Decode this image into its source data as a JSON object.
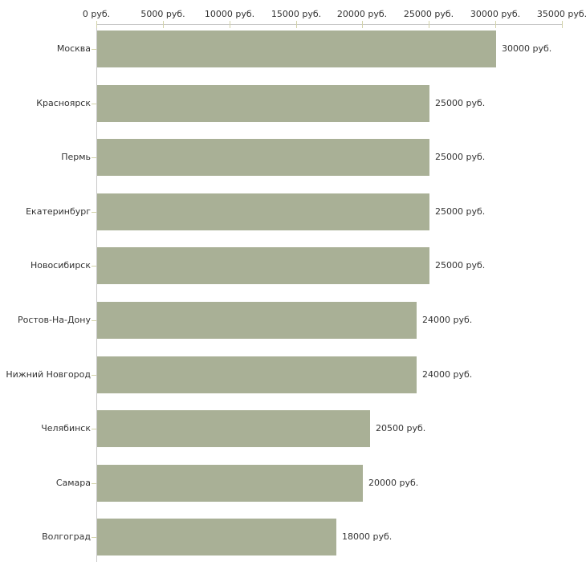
{
  "chart_data": {
    "type": "bar",
    "orientation": "horizontal",
    "title": "",
    "xlabel": "",
    "ylabel": "",
    "categories": [
      "Москва",
      "Красноярск",
      "Пермь",
      "Екатеринбург",
      "Новосибирск",
      "Ростов-На-Дону",
      "Нижний Новгород",
      "Челябинск",
      "Самара",
      "Волгоград"
    ],
    "values": [
      30000,
      25000,
      25000,
      25000,
      25000,
      24000,
      24000,
      20500,
      20000,
      18000
    ],
    "value_labels": [
      "30000 руб.",
      "25000 руб.",
      "25000 руб.",
      "25000 руб.",
      "25000 руб.",
      "24000 руб.",
      "24000 руб.",
      "20500 руб.",
      "20000 руб.",
      "18000 руб."
    ],
    "x_axis": {
      "position": "top",
      "range": [
        0,
        35000
      ],
      "ticks": [
        0,
        5000,
        10000,
        15000,
        20000,
        25000,
        30000,
        35000
      ],
      "tick_labels": [
        "0 руб.",
        "5000 руб.",
        "10000 руб.",
        "15000 руб.",
        "20000 руб.",
        "25000 руб.",
        "30000 руб.",
        "35000 руб."
      ]
    },
    "grid": false,
    "legend": false,
    "colors": {
      "bar": "#a9b096",
      "axis_line": "#c8c8c8",
      "tick_mark": "#d2d2a8",
      "text": "#333333",
      "background": "#ffffff"
    }
  }
}
